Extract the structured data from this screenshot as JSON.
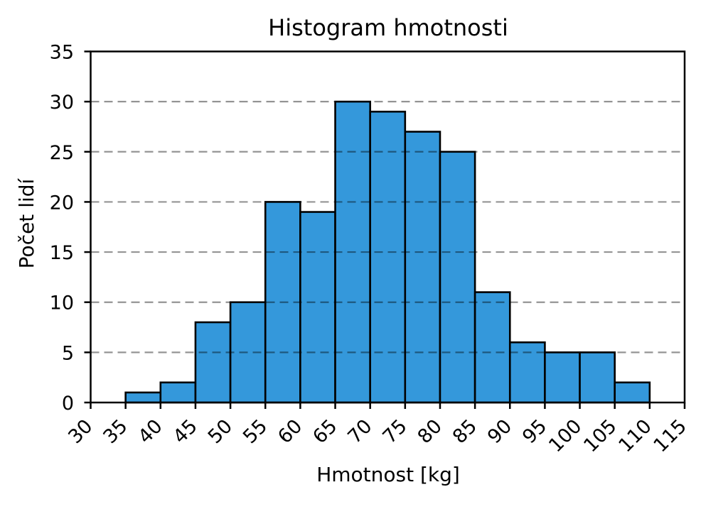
{
  "chart_data": {
    "type": "bar",
    "subtype": "histogram",
    "title": "Histogram hmotnosti",
    "xlabel": "Hmotnost [kg]",
    "ylabel": "Počet lidí",
    "bin_width": 5,
    "bin_edges": [
      35,
      40,
      45,
      50,
      55,
      60,
      65,
      70,
      75,
      80,
      85,
      90,
      95,
      100,
      105,
      110
    ],
    "values": [
      1,
      2,
      8,
      10,
      20,
      19,
      30,
      29,
      27,
      25,
      11,
      6,
      5,
      5,
      2
    ],
    "xlim": [
      30,
      115
    ],
    "ylim": [
      0,
      35
    ],
    "xticks": [
      30,
      35,
      40,
      45,
      50,
      55,
      60,
      65,
      70,
      75,
      80,
      85,
      90,
      95,
      100,
      105,
      110,
      115
    ],
    "yticks": [
      0,
      5,
      10,
      15,
      20,
      25,
      30,
      35
    ],
    "gridlines_y": [
      5,
      10,
      15,
      20,
      25,
      30
    ],
    "grid_style": "dashed",
    "grid_over_bars": true,
    "xtick_rotation_deg": 45,
    "legend": "none",
    "colors": {
      "bar_fill": "#3498db",
      "bar_edge": "#000000",
      "axis": "#000000",
      "grid": "rgba(0,0,0,0.42)",
      "text": "#000000",
      "background": "#ffffff"
    }
  }
}
